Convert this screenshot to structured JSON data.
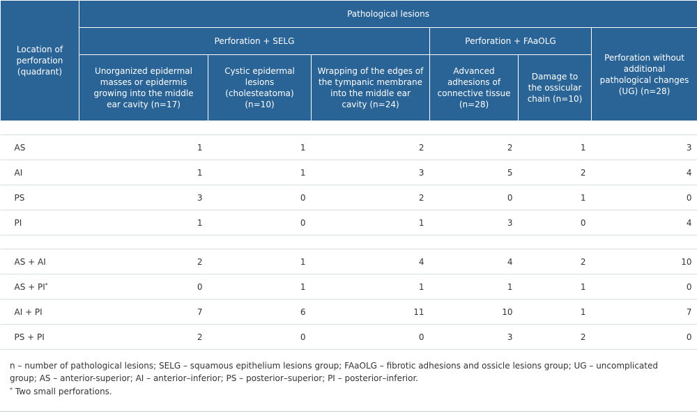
{
  "header": {
    "location": "Location of perforation (quadrant)",
    "pathological": "Pathological lesions",
    "group_selg": "Perforation + SELG",
    "group_faaolg": "Perforation + FAaOLG",
    "group_ug": "Perforation without additional pathological changes (UG) (n=28)",
    "col1": "Unorganized epidermal masses or epidermis growing into the middle ear cavity (n=17)",
    "col2": "Cystic epidermal lesions (cholesteatoma) (n=10)",
    "col3": "Wrapping of the edges of the tympanic membrane into the middle ear cavity (n=24)",
    "col4": "Advanced adhesions of connective tissue (n=28)",
    "col5": "Damage to the ossicular chain (n=10)"
  },
  "rows_single": [
    {
      "loc": "AS",
      "v": [
        "1",
        "1",
        "2",
        "2",
        "1",
        "3"
      ]
    },
    {
      "loc": "AI",
      "v": [
        "1",
        "1",
        "3",
        "5",
        "2",
        "4"
      ]
    },
    {
      "loc": "PS",
      "v": [
        "3",
        "0",
        "2",
        "0",
        "1",
        "0"
      ]
    },
    {
      "loc": "PI",
      "v": [
        "1",
        "0",
        "1",
        "3",
        "0",
        "4"
      ]
    }
  ],
  "rows_combined": [
    {
      "loc": "AS + AI",
      "v": [
        "2",
        "1",
        "4",
        "4",
        "2",
        "10"
      ]
    },
    {
      "loc": "AS + PI",
      "sup": "*",
      "v": [
        "0",
        "1",
        "1",
        "1",
        "1",
        "0"
      ]
    },
    {
      "loc": "AI + PI",
      "v": [
        "7",
        "6",
        "11",
        "10",
        "1",
        "7"
      ]
    },
    {
      "loc": "PS + PI",
      "v": [
        "2",
        "0",
        "0",
        "3",
        "2",
        "0"
      ]
    }
  ],
  "footnotes": {
    "abbrev": "n – number of pathological lesions; SELG – squamous epithelium lesions group; FAaOLG – fibrotic adhesions and ossicle lesions group; UG – uncomplicated group; AS – anterior-superior; AI – anterior–inferior; PS – posterior–superior; PI – posterior–inferior.",
    "star": "*",
    "star_text": " Two small perforations."
  }
}
